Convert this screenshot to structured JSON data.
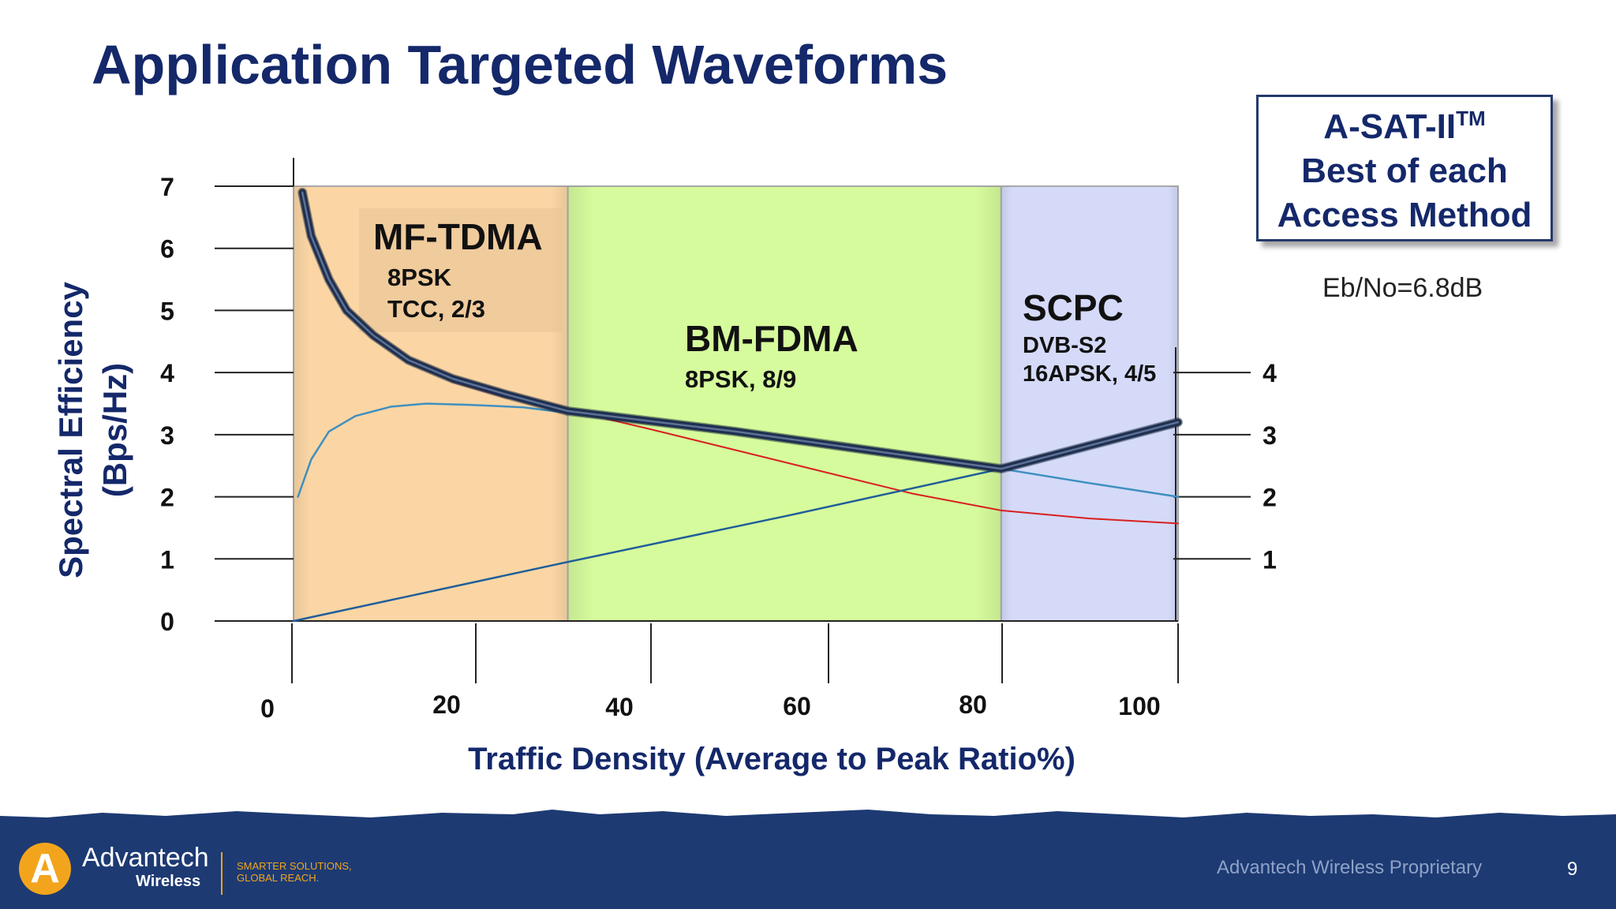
{
  "slide": {
    "title": "Application Targeted Waveforms",
    "asat_box": {
      "line1": "A-SAT-II",
      "line1_sup": "TM",
      "line2": "Best of each",
      "line3": "Access Method"
    },
    "ebno": "Eb/No=6.8dB"
  },
  "footer": {
    "logo_letter": "A",
    "company": "Advantech",
    "company_sub": "Wireless",
    "tagline_line1": "SMARTER SOLUTIONS,",
    "tagline_line2": "GLOBAL REACH.",
    "proprietary": "Advantech Wireless Proprietary",
    "page_number": "9"
  },
  "chart_data": {
    "type": "line",
    "title": "",
    "xlabel": "Traffic Density (Average to Peak Ratio%)",
    "ylabel_line1": "Spectral Efficiency",
    "ylabel_line2": "(Bps/Hz)",
    "xlim": [
      0,
      100
    ],
    "ylim": [
      0,
      7
    ],
    "x_ticks": [
      0,
      20,
      40,
      60,
      80,
      100
    ],
    "y_ticks_left": [
      0,
      1,
      2,
      3,
      4,
      5,
      6,
      7
    ],
    "y_ticks_right": [
      1,
      2,
      3,
      4
    ],
    "grid": false,
    "regions": [
      {
        "x_start": 0,
        "x_end": 31,
        "color": "#fbd6a4",
        "title": "MF-TDMA",
        "line1": "8PSK",
        "line2": "TCC, 2/3"
      },
      {
        "x_start": 31,
        "x_end": 80,
        "color": "#d6fb9c",
        "title": "BM-FDMA",
        "line1": "8PSK, 8/9",
        "line2": ""
      },
      {
        "x_start": 80,
        "x_end": 100,
        "color": "#d4daf8",
        "title": "SCPC",
        "line1": "DVB-S2",
        "line2": "16APSK, 4/5"
      }
    ],
    "series": [
      {
        "color": "#d82020",
        "width": 2,
        "points": [
          [
            1,
            6.9
          ],
          [
            2,
            6.2
          ],
          [
            4,
            5.5
          ],
          [
            6,
            5.0
          ],
          [
            9,
            4.6
          ],
          [
            13,
            4.2
          ],
          [
            18,
            3.85
          ],
          [
            24,
            3.6
          ],
          [
            31,
            3.4
          ],
          [
            40,
            3.1
          ],
          [
            50,
            2.75
          ],
          [
            60,
            2.4
          ],
          [
            70,
            2.05
          ],
          [
            80,
            1.78
          ],
          [
            90,
            1.65
          ],
          [
            100,
            1.57
          ]
        ]
      },
      {
        "color": "#3f8fc0",
        "width": 2.5,
        "points": [
          [
            0.5,
            2.0
          ],
          [
            2,
            2.6
          ],
          [
            4,
            3.05
          ],
          [
            7,
            3.3
          ],
          [
            11,
            3.45
          ],
          [
            15,
            3.5
          ],
          [
            20,
            3.48
          ],
          [
            26,
            3.44
          ],
          [
            31,
            3.35
          ]
        ]
      },
      {
        "color": "#1f5e9a",
        "width": 2.5,
        "points": [
          [
            0,
            0
          ],
          [
            31,
            0.95
          ],
          [
            56,
            1.7
          ],
          [
            80,
            2.45
          ]
        ]
      },
      {
        "color": "#3f8fc0",
        "width": 2.5,
        "points": [
          [
            80,
            2.45
          ],
          [
            90,
            2.22
          ],
          [
            100,
            2.0
          ]
        ]
      },
      {
        "color": "#1f3050",
        "width": 9,
        "points": [
          [
            1,
            6.9
          ],
          [
            2,
            6.2
          ],
          [
            4,
            5.5
          ],
          [
            6,
            5.0
          ],
          [
            9,
            4.6
          ],
          [
            13,
            4.2
          ],
          [
            18,
            3.9
          ],
          [
            24,
            3.65
          ],
          [
            31,
            3.38
          ],
          [
            50,
            3.05
          ],
          [
            65,
            2.75
          ],
          [
            80,
            2.45
          ],
          [
            100,
            3.2
          ]
        ]
      }
    ]
  }
}
